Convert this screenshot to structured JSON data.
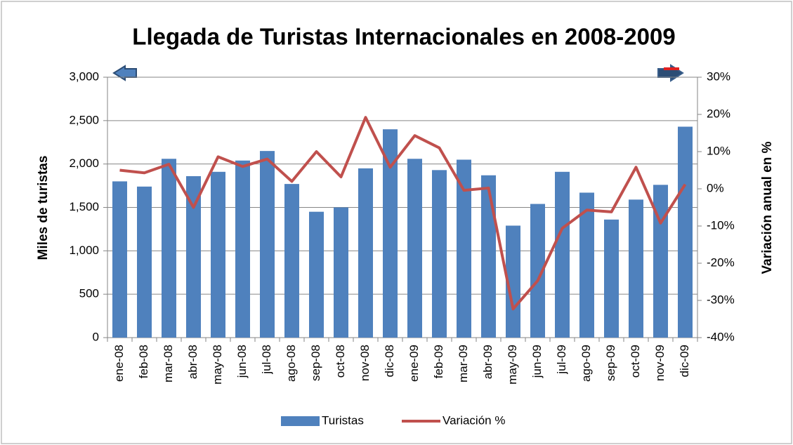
{
  "chart_data": {
    "type": "bar",
    "title": "Llegada de Turistas Internacionales en 2008-2009",
    "y_label": "Miles de turistas",
    "y2_label": "Variación anual en %",
    "categories": [
      "ene-08",
      "feb-08",
      "mar-08",
      "abr-08",
      "may-08",
      "jun-08",
      "jul-08",
      "ago-08",
      "sep-08",
      "oct-08",
      "nov-08",
      "dic-08",
      "ene-09",
      "feb-09",
      "mar-09",
      "abr-09",
      "may-09",
      "jun-09",
      "jul-09",
      "ago-09",
      "sep-09",
      "oct-09",
      "nov-09",
      "dic-09"
    ],
    "series": [
      {
        "name": "Turistas",
        "type": "bar",
        "color": "#4f81bd",
        "values": [
          1800,
          1740,
          2060,
          1860,
          1910,
          2040,
          2150,
          1770,
          1450,
          1500,
          1950,
          2400,
          2060,
          1930,
          2050,
          1870,
          1290,
          1540,
          1910,
          1670,
          1360,
          1590,
          1760,
          2430
        ]
      },
      {
        "name": "Variación %",
        "type": "line",
        "axis": "y2",
        "color": "#c0504d",
        "values": [
          5,
          4.3,
          6.6,
          -5,
          8.6,
          6,
          8,
          2,
          10,
          3.2,
          19.2,
          5.8,
          14.3,
          11,
          -0.4,
          0.2,
          -32.3,
          -24.7,
          -10.6,
          -5.7,
          -6.2,
          5.8,
          -9.2,
          1.2
        ]
      }
    ],
    "ylim": [
      0,
      3000
    ],
    "yticks": [
      0,
      500,
      {
        "value": 1000,
        "label": "1,000"
      },
      {
        "value": 1500,
        "label": "1,500"
      },
      {
        "value": 2000,
        "label": "2,000"
      },
      {
        "value": 2500,
        "label": "2,500"
      },
      {
        "value": 3000,
        "label": "3,000"
      }
    ],
    "y2lim": [
      -40,
      30
    ],
    "y2ticks": [
      {
        "value": -40,
        "label": "-40%"
      },
      {
        "value": -30,
        "label": "-30%"
      },
      {
        "value": -20,
        "label": "-20%"
      },
      {
        "value": -10,
        "label": "-10%"
      },
      {
        "value": 0,
        "label": "0%"
      },
      {
        "value": 10,
        "label": "10%"
      },
      {
        "value": 20,
        "label": "20%"
      },
      {
        "value": 30,
        "label": "30%"
      }
    ],
    "grid": true,
    "legend": "bottom"
  }
}
